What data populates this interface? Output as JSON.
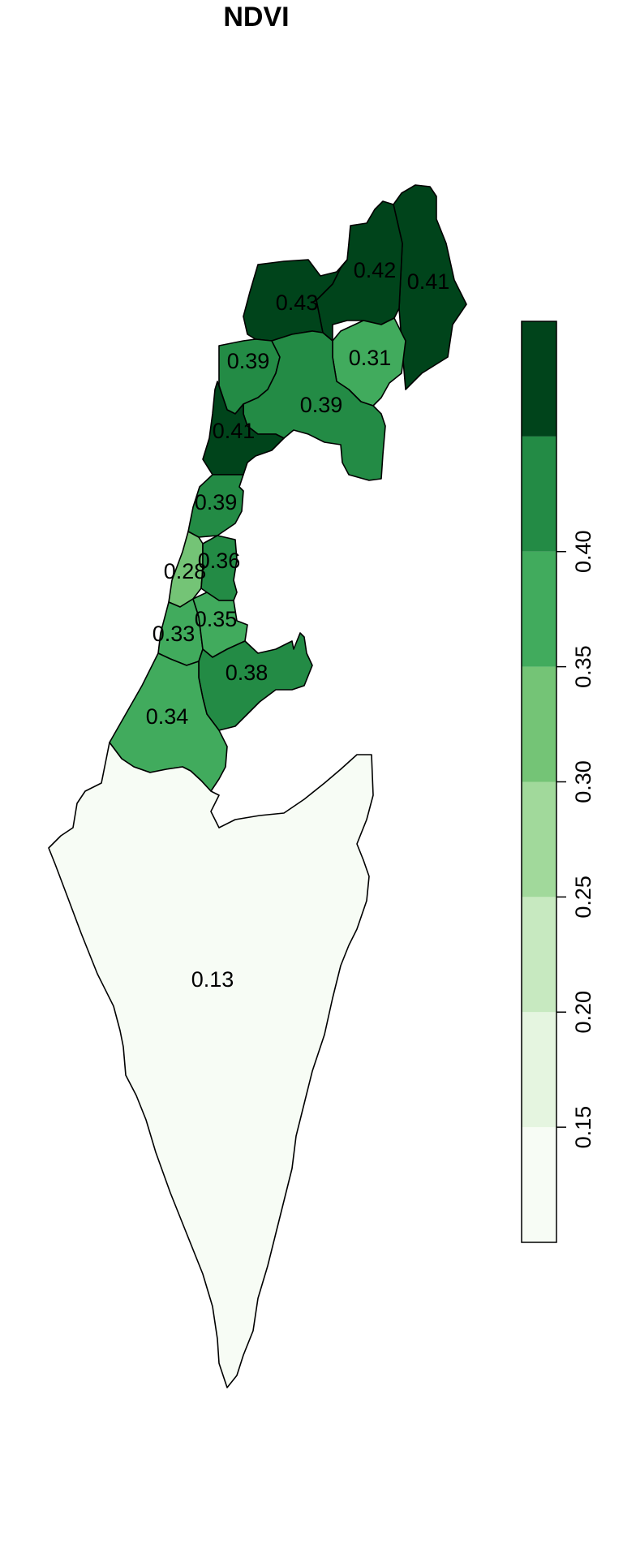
{
  "title": "NDVI",
  "regions": [
    {
      "id": "golan-north",
      "value": "0.41",
      "color": "#00441b"
    },
    {
      "id": "upper-galilee",
      "value": "0.42",
      "color": "#00441b"
    },
    {
      "id": "western-galilee",
      "value": "0.43",
      "color": "#00441b"
    },
    {
      "id": "kinneret",
      "value": "0.31",
      "color": "#41ab5d"
    },
    {
      "id": "akko-haifa",
      "value": "0.39",
      "color": "#238b45"
    },
    {
      "id": "jezreel",
      "value": "0.39",
      "color": "#238b45"
    },
    {
      "id": "haifa-coast",
      "value": "0.41",
      "color": "#00441b"
    },
    {
      "id": "hadera",
      "value": "0.39",
      "color": "#238b45"
    },
    {
      "id": "tel-aviv",
      "value": "0.28",
      "color": "#74c476"
    },
    {
      "id": "petah-tikva",
      "value": "0.36",
      "color": "#238b45"
    },
    {
      "id": "rehovot",
      "value": "0.33",
      "color": "#41ab5d"
    },
    {
      "id": "ramla",
      "value": "0.35",
      "color": "#41ab5d"
    },
    {
      "id": "jerusalem",
      "value": "0.38",
      "color": "#238b45"
    },
    {
      "id": "ashkelon",
      "value": "0.34",
      "color": "#41ab5d"
    },
    {
      "id": "negev",
      "value": "0.13",
      "color": "#f7fcf5"
    }
  ],
  "legend": {
    "colors": [
      "#f7fcf5",
      "#e5f5e0",
      "#c7e9c0",
      "#a1d99b",
      "#74c476",
      "#41ab5d",
      "#238b45",
      "#00441b"
    ],
    "ticks": [
      "0.15",
      "0.20",
      "0.25",
      "0.30",
      "0.35",
      "0.40"
    ]
  }
}
